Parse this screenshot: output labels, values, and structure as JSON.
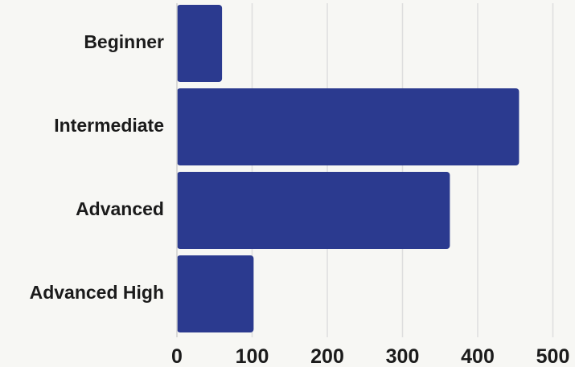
{
  "chart_data": {
    "type": "bar",
    "orientation": "horizontal",
    "categories": [
      "Beginner",
      "Intermediate",
      "Advanced",
      "Advanced High"
    ],
    "values": [
      60,
      455,
      363,
      102
    ],
    "xlim": [
      0,
      500
    ],
    "xticks": [
      0,
      100,
      200,
      300,
      400,
      500
    ],
    "xtick_labels": [
      "0",
      "100",
      "200",
      "300",
      "400",
      "500"
    ],
    "title": "",
    "xlabel": "",
    "ylabel": "",
    "grid": "vertical",
    "legend": "none",
    "bar_color": "#2b3a8f",
    "grid_color": "#dedede"
  }
}
